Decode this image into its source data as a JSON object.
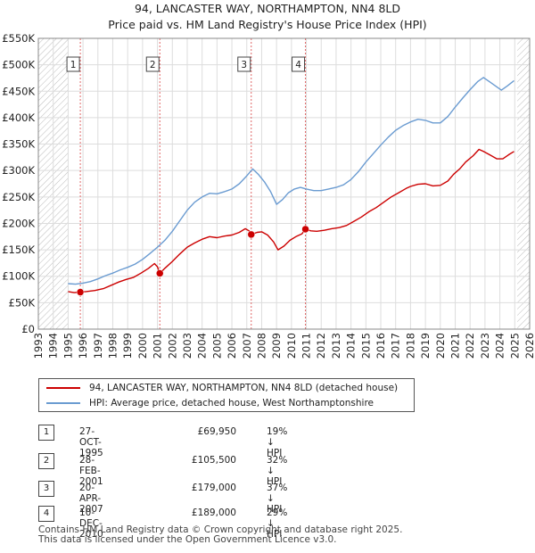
{
  "chart_data": {
    "type": "line",
    "title": "94, LANCASTER WAY, NORTHAMPTON, NN4 8LD",
    "subtitle": "Price paid vs. HM Land Registry's House Price Index (HPI)",
    "xlim": [
      1993,
      2026
    ],
    "ylim": [
      0,
      550000
    ],
    "x_ticks": [
      "1993",
      "1994",
      "1995",
      "1996",
      "1997",
      "1998",
      "1999",
      "2000",
      "2001",
      "2002",
      "2003",
      "2004",
      "2005",
      "2006",
      "2007",
      "2008",
      "2009",
      "2010",
      "2011",
      "2012",
      "2013",
      "2014",
      "2015",
      "2016",
      "2017",
      "2018",
      "2019",
      "2020",
      "2021",
      "2022",
      "2023",
      "2024",
      "2025",
      "2026"
    ],
    "y_ticks": [
      {
        "value": 0,
        "label": "£0"
      },
      {
        "value": 50000,
        "label": "£50K"
      },
      {
        "value": 100000,
        "label": "£100K"
      },
      {
        "value": 150000,
        "label": "£150K"
      },
      {
        "value": 200000,
        "label": "£200K"
      },
      {
        "value": 250000,
        "label": "£250K"
      },
      {
        "value": 300000,
        "label": "£300K"
      },
      {
        "value": 350000,
        "label": "£350K"
      },
      {
        "value": 400000,
        "label": "£400K"
      },
      {
        "value": 450000,
        "label": "£450K"
      },
      {
        "value": 500000,
        "label": "£500K"
      },
      {
        "value": 550000,
        "label": "£550K"
      }
    ],
    "hatched_ranges": [
      [
        1993,
        1995.0
      ],
      [
        2025.17,
        2026
      ]
    ],
    "grid": true,
    "series": [
      {
        "name": "94, LANCASTER WAY, NORTHAMPTON, NN4 8LD (detached house)",
        "color": "#cc0000",
        "points": [
          [
            1995.0,
            71000
          ],
          [
            1995.4,
            69000
          ],
          [
            1995.82,
            69950
          ],
          [
            1996.2,
            71000
          ],
          [
            1996.8,
            73000
          ],
          [
            1997.4,
            77000
          ],
          [
            1997.9,
            83000
          ],
          [
            1998.4,
            89000
          ],
          [
            1998.9,
            94000
          ],
          [
            1999.4,
            98000
          ],
          [
            1999.9,
            106000
          ],
          [
            2000.4,
            115000
          ],
          [
            2000.8,
            124000
          ],
          [
            2001.0,
            118000
          ],
          [
            2001.16,
            105500
          ],
          [
            2001.5,
            115000
          ],
          [
            2002.0,
            128000
          ],
          [
            2002.5,
            142000
          ],
          [
            2003.0,
            155000
          ],
          [
            2003.5,
            163000
          ],
          [
            2004.0,
            170000
          ],
          [
            2004.5,
            175000
          ],
          [
            2005.0,
            173000
          ],
          [
            2005.5,
            176000
          ],
          [
            2006.0,
            178000
          ],
          [
            2006.5,
            183000
          ],
          [
            2006.9,
            190000
          ],
          [
            2007.15,
            186000
          ],
          [
            2007.3,
            179000
          ],
          [
            2007.7,
            183000
          ],
          [
            2008.0,
            184000
          ],
          [
            2008.4,
            178000
          ],
          [
            2008.8,
            165000
          ],
          [
            2009.1,
            150000
          ],
          [
            2009.5,
            157000
          ],
          [
            2009.9,
            168000
          ],
          [
            2010.3,
            175000
          ],
          [
            2010.7,
            180000
          ],
          [
            2010.94,
            189000
          ],
          [
            2011.3,
            186000
          ],
          [
            2011.7,
            185000
          ],
          [
            2012.2,
            187000
          ],
          [
            2012.7,
            190000
          ],
          [
            2013.2,
            192000
          ],
          [
            2013.7,
            196000
          ],
          [
            2014.2,
            204000
          ],
          [
            2014.7,
            212000
          ],
          [
            2015.2,
            222000
          ],
          [
            2015.7,
            230000
          ],
          [
            2016.2,
            240000
          ],
          [
            2016.7,
            250000
          ],
          [
            2017.2,
            258000
          ],
          [
            2017.7,
            266000
          ],
          [
            2018.0,
            270000
          ],
          [
            2018.5,
            274000
          ],
          [
            2019.0,
            275000
          ],
          [
            2019.5,
            271000
          ],
          [
            2020.0,
            272000
          ],
          [
            2020.5,
            280000
          ],
          [
            2020.9,
            293000
          ],
          [
            2021.3,
            303000
          ],
          [
            2021.7,
            316000
          ],
          [
            2022.2,
            328000
          ],
          [
            2022.6,
            340000
          ],
          [
            2022.9,
            336000
          ],
          [
            2023.3,
            330000
          ],
          [
            2023.8,
            322000
          ],
          [
            2024.2,
            322000
          ],
          [
            2024.6,
            330000
          ],
          [
            2024.95,
            336000
          ]
        ]
      },
      {
        "name": "HPI: Average price, detached house, West Northamptonshire",
        "color": "#6a9bd1",
        "points": [
          [
            1995.0,
            86000
          ],
          [
            1995.5,
            85000
          ],
          [
            1996.0,
            87000
          ],
          [
            1996.5,
            90000
          ],
          [
            1997.0,
            95000
          ],
          [
            1997.5,
            101000
          ],
          [
            1998.0,
            106000
          ],
          [
            1998.5,
            112000
          ],
          [
            1999.0,
            117000
          ],
          [
            1999.5,
            123000
          ],
          [
            2000.0,
            132000
          ],
          [
            2000.5,
            143000
          ],
          [
            2001.0,
            155000
          ],
          [
            2001.5,
            168000
          ],
          [
            2002.0,
            185000
          ],
          [
            2002.5,
            205000
          ],
          [
            2003.0,
            225000
          ],
          [
            2003.5,
            240000
          ],
          [
            2004.0,
            250000
          ],
          [
            2004.5,
            257000
          ],
          [
            2005.0,
            256000
          ],
          [
            2005.5,
            260000
          ],
          [
            2006.0,
            265000
          ],
          [
            2006.5,
            275000
          ],
          [
            2007.0,
            290000
          ],
          [
            2007.4,
            303000
          ],
          [
            2007.8,
            292000
          ],
          [
            2008.2,
            278000
          ],
          [
            2008.6,
            260000
          ],
          [
            2009.0,
            236000
          ],
          [
            2009.4,
            245000
          ],
          [
            2009.8,
            258000
          ],
          [
            2010.2,
            265000
          ],
          [
            2010.6,
            268000
          ],
          [
            2011.0,
            265000
          ],
          [
            2011.5,
            262000
          ],
          [
            2012.0,
            262000
          ],
          [
            2012.5,
            265000
          ],
          [
            2013.0,
            268000
          ],
          [
            2013.5,
            273000
          ],
          [
            2014.0,
            283000
          ],
          [
            2014.5,
            298000
          ],
          [
            2015.0,
            316000
          ],
          [
            2015.5,
            332000
          ],
          [
            2016.0,
            348000
          ],
          [
            2016.5,
            363000
          ],
          [
            2017.0,
            376000
          ],
          [
            2017.5,
            385000
          ],
          [
            2018.0,
            392000
          ],
          [
            2018.5,
            397000
          ],
          [
            2019.0,
            395000
          ],
          [
            2019.5,
            390000
          ],
          [
            2020.0,
            390000
          ],
          [
            2020.5,
            402000
          ],
          [
            2021.0,
            420000
          ],
          [
            2021.5,
            437000
          ],
          [
            2022.0,
            453000
          ],
          [
            2022.5,
            468000
          ],
          [
            2022.9,
            476000
          ],
          [
            2023.3,
            468000
          ],
          [
            2023.7,
            460000
          ],
          [
            2024.1,
            452000
          ],
          [
            2024.5,
            460000
          ],
          [
            2024.95,
            470000
          ]
        ]
      }
    ],
    "markers": [
      {
        "label": "1",
        "x": 1995.82,
        "y": 69950
      },
      {
        "label": "2",
        "x": 2001.16,
        "y": 105500
      },
      {
        "label": "3",
        "x": 2007.3,
        "y": 179000
      },
      {
        "label": "4",
        "x": 2010.94,
        "y": 189000
      }
    ]
  },
  "legend": {
    "items": [
      {
        "label": "94, LANCASTER WAY, NORTHAMPTON, NN4 8LD (detached house)",
        "color": "#cc0000"
      },
      {
        "label": "HPI: Average price, detached house, West Northamptonshire",
        "color": "#6a9bd1"
      }
    ]
  },
  "sales": [
    {
      "num": "1",
      "date": "27-OCT-1995",
      "price": "£69,950",
      "hpi": "19% ↓ HPI"
    },
    {
      "num": "2",
      "date": "28-FEB-2001",
      "price": "£105,500",
      "hpi": "32% ↓ HPI"
    },
    {
      "num": "3",
      "date": "20-APR-2007",
      "price": "£179,000",
      "hpi": "37% ↓ HPI"
    },
    {
      "num": "4",
      "date": "10-DEC-2010",
      "price": "£189,000",
      "hpi": "29% ↓ HPI"
    }
  ],
  "footer": {
    "line1": "Contains HM Land Registry data © Crown copyright and database right 2025.",
    "line2": "This data is licensed under the Open Government Licence v3.0."
  }
}
